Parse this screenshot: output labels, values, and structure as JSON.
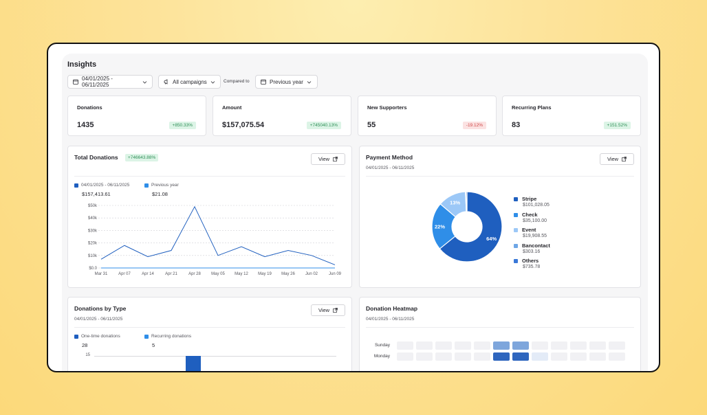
{
  "header": {
    "title": "Insights",
    "date_range": "04/01/2025 - 06/11/2025",
    "campaign": "All campaigns",
    "compared_label": "Compared to",
    "compare_period": "Previous year"
  },
  "stats": [
    {
      "label": "Donations",
      "value": "1435",
      "change": "+850.33%",
      "trend": "up"
    },
    {
      "label": "Amount",
      "value": "$157,075.54",
      "change": "+745040.13%",
      "trend": "up"
    },
    {
      "label": "New Supporters",
      "value": "55",
      "change": "-19.12%",
      "trend": "down"
    },
    {
      "label": "Recurring Plans",
      "value": "83",
      "change": "+151.52%",
      "trend": "up"
    }
  ],
  "total_donations": {
    "title": "Total Donations",
    "badge": "+746643.88%",
    "view_label": "View",
    "legend": [
      {
        "label": "04/01/2025 - 06/11/2025",
        "value": "$157,413.61",
        "color": "#1f5fbf"
      },
      {
        "label": "Previous year",
        "value": "$21.08",
        "color": "#2f8ee8"
      }
    ]
  },
  "payment_method": {
    "title": "Payment Method",
    "subtitle": "04/01/2025 - 06/11/2025",
    "view_label": "View",
    "items": [
      {
        "name": "Stripe",
        "amount": "$101,028.05",
        "color": "#1f5fbf"
      },
      {
        "name": "Check",
        "amount": "$35,100.00",
        "color": "#2f8ee8"
      },
      {
        "name": "Event",
        "amount": "$19,908.55",
        "color": "#9cc8f7"
      },
      {
        "name": "Bancontact",
        "amount": "$303.16",
        "color": "#6ea6e6"
      },
      {
        "name": "Others",
        "amount": "$735.78",
        "color": "#3a78d8"
      }
    ]
  },
  "donations_by_type": {
    "title": "Donations by Type",
    "subtitle": "04/01/2025 - 06/11/2025",
    "view_label": "View",
    "legend": [
      {
        "label": "One-time donations",
        "value": "28",
        "color": "#1f5fbf"
      },
      {
        "label": "Recurring donations",
        "value": "5",
        "color": "#2f8ee8"
      }
    ],
    "y_tick": "15"
  },
  "heatmap": {
    "title": "Donation Heatmap",
    "subtitle": "04/01/2025 - 06/11/2025",
    "rows": [
      {
        "day": "Sunday",
        "levels": [
          0,
          0,
          0,
          0,
          0,
          2,
          2,
          0,
          0,
          0,
          0,
          0
        ]
      },
      {
        "day": "Monday",
        "levels": [
          0,
          0,
          0,
          0,
          0,
          3,
          3,
          1,
          0,
          0,
          0,
          0
        ]
      }
    ]
  },
  "chart_data": [
    {
      "type": "line",
      "title": "Total Donations",
      "x": [
        "Mar 31",
        "Apr 07",
        "Apr 14",
        "Apr 21",
        "Apr 28",
        "May 05",
        "May 12",
        "May 19",
        "May 26",
        "Jun 02",
        "Jun 09"
      ],
      "y_ticks": [
        "$0.0",
        "$10k",
        "$20k",
        "$30k",
        "$40k",
        "$50k"
      ],
      "ylim": [
        0,
        50000
      ],
      "grid": true,
      "legend_placement": "top-left",
      "series": [
        {
          "name": "04/01/2025 - 06/11/2025",
          "color": "#1f5fbf",
          "values": [
            7000,
            18000,
            9000,
            14000,
            49000,
            10000,
            17000,
            9000,
            14000,
            10000,
            2500
          ]
        },
        {
          "name": "Previous year",
          "color": "#2f8ee8",
          "values": [
            0,
            0,
            0,
            0,
            0,
            0,
            0,
            0,
            0,
            0,
            0
          ]
        }
      ]
    },
    {
      "type": "pie",
      "title": "Payment Method",
      "categories": [
        "Stripe",
        "Check",
        "Event",
        "Bancontact",
        "Others"
      ],
      "values": [
        64,
        22,
        13,
        0.2,
        0.5
      ],
      "labels": [
        "64%",
        "22%",
        "13%",
        "",
        ""
      ],
      "colors": [
        "#1f5fbf",
        "#2f8ee8",
        "#9cc8f7",
        "#6ea6e6",
        "#3a78d8"
      ]
    }
  ]
}
